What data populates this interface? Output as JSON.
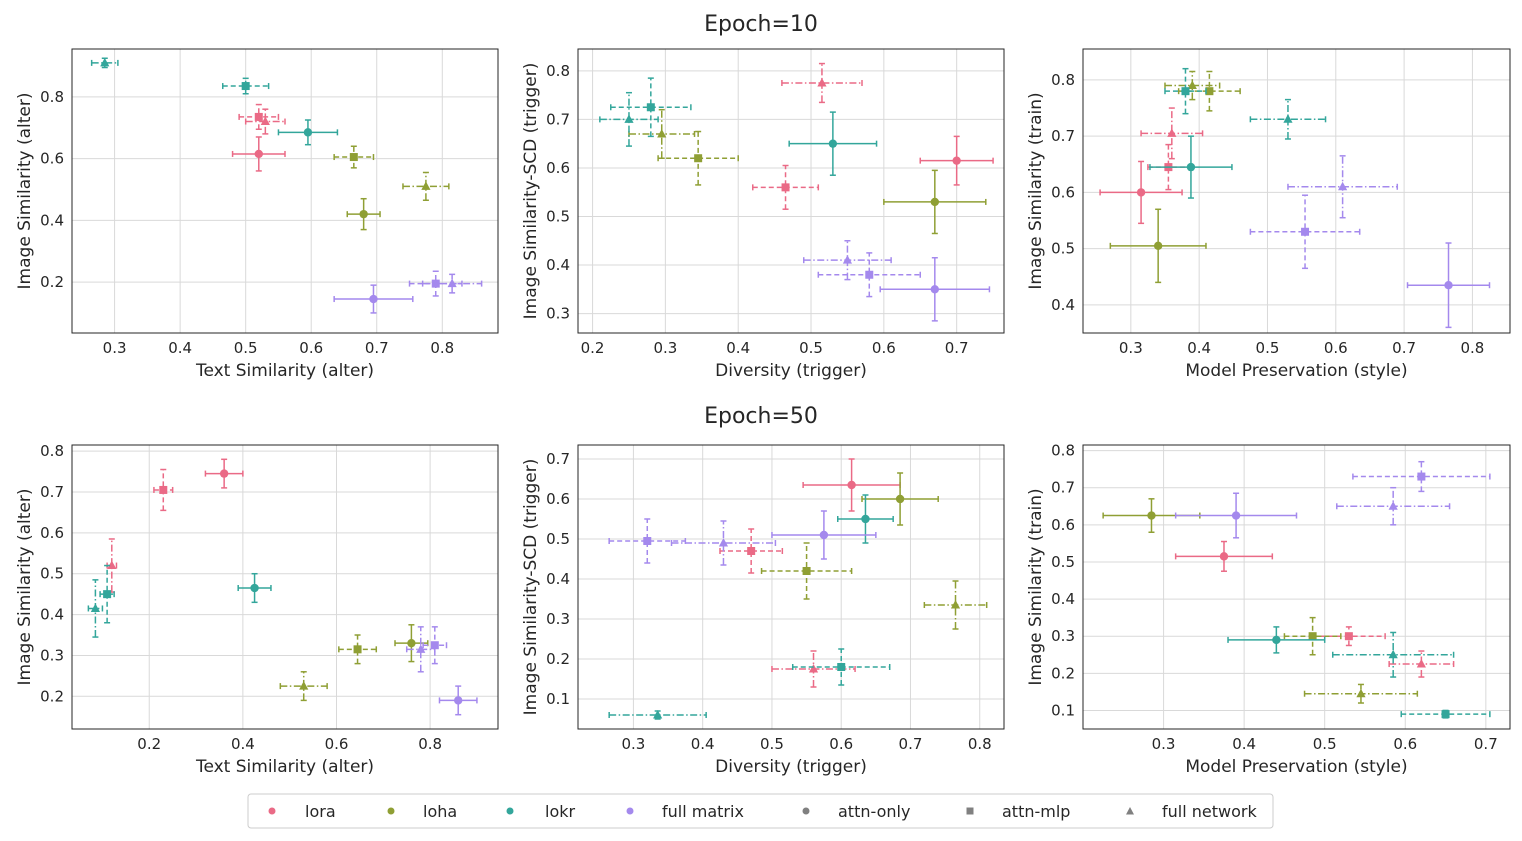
{
  "figure": {
    "row_titles": [
      "Epoch=10",
      "Epoch=50"
    ],
    "legend": {
      "algorithms": [
        {
          "key": "lora",
          "label": "lora",
          "color": "#ea6a86"
        },
        {
          "key": "loha",
          "label": "loha",
          "color": "#8f9f34"
        },
        {
          "key": "lokr",
          "label": "lokr",
          "color": "#33a69b"
        },
        {
          "key": "full",
          "label": "full matrix",
          "color": "#a489ed"
        }
      ],
      "presets": [
        {
          "key": "attn-only",
          "label": "attn-only",
          "marker": "circle",
          "line": "solid"
        },
        {
          "key": "attn-mlp",
          "label": "attn-mlp",
          "marker": "square",
          "line": "dashed"
        },
        {
          "key": "full-network",
          "label": "full network",
          "marker": "triangle",
          "line": "dashdot"
        }
      ],
      "marker_color": "#808080"
    }
  },
  "chart_data": [
    {
      "type": "scatter",
      "row": 0,
      "col": 0,
      "xlabel": "Text Similarity (alter)",
      "ylabel": "Image Similarity (alter)",
      "xlim": [
        0.235,
        0.885
      ],
      "ylim": [
        0.035,
        0.955
      ],
      "xticks": [
        0.3,
        0.4,
        0.5,
        0.6,
        0.7,
        0.8
      ],
      "yticks": [
        0.2,
        0.4,
        0.6,
        0.8
      ],
      "tick_format": 1,
      "points": [
        {
          "algo": "lora",
          "preset": "attn-only",
          "x": 0.52,
          "y": 0.615,
          "xerr": 0.04,
          "yerr": 0.055
        },
        {
          "algo": "lora",
          "preset": "attn-mlp",
          "x": 0.52,
          "y": 0.735,
          "xerr": 0.03,
          "yerr": 0.04
        },
        {
          "algo": "lora",
          "preset": "full-network",
          "x": 0.53,
          "y": 0.72,
          "xerr": 0.03,
          "yerr": 0.04
        },
        {
          "algo": "loha",
          "preset": "attn-only",
          "x": 0.68,
          "y": 0.42,
          "xerr": 0.025,
          "yerr": 0.05
        },
        {
          "algo": "loha",
          "preset": "attn-mlp",
          "x": 0.665,
          "y": 0.605,
          "xerr": 0.03,
          "yerr": 0.035
        },
        {
          "algo": "loha",
          "preset": "full-network",
          "x": 0.775,
          "y": 0.51,
          "xerr": 0.035,
          "yerr": 0.045
        },
        {
          "algo": "lokr",
          "preset": "attn-only",
          "x": 0.595,
          "y": 0.685,
          "xerr": 0.045,
          "yerr": 0.04
        },
        {
          "algo": "lokr",
          "preset": "attn-mlp",
          "x": 0.5,
          "y": 0.835,
          "xerr": 0.035,
          "yerr": 0.025
        },
        {
          "algo": "lokr",
          "preset": "full-network",
          "x": 0.285,
          "y": 0.91,
          "xerr": 0.02,
          "yerr": 0.015
        },
        {
          "algo": "full",
          "preset": "attn-only",
          "x": 0.695,
          "y": 0.145,
          "xerr": 0.06,
          "yerr": 0.045
        },
        {
          "algo": "full",
          "preset": "attn-mlp",
          "x": 0.79,
          "y": 0.195,
          "xerr": 0.04,
          "yerr": 0.04
        },
        {
          "algo": "full",
          "preset": "full-network",
          "x": 0.815,
          "y": 0.195,
          "xerr": 0.045,
          "yerr": 0.03
        }
      ]
    },
    {
      "type": "scatter",
      "row": 0,
      "col": 1,
      "xlabel": "Diversity (trigger)",
      "ylabel": "Image Similarity-SCD (trigger)",
      "xlim": [
        0.18,
        0.765
      ],
      "ylim": [
        0.26,
        0.845
      ],
      "xticks": [
        0.2,
        0.3,
        0.4,
        0.5,
        0.6,
        0.7
      ],
      "yticks": [
        0.3,
        0.4,
        0.5,
        0.6,
        0.7,
        0.8
      ],
      "tick_format": 1,
      "points": [
        {
          "algo": "lora",
          "preset": "attn-only",
          "x": 0.7,
          "y": 0.615,
          "xerr": 0.05,
          "yerr": 0.05
        },
        {
          "algo": "lora",
          "preset": "attn-mlp",
          "x": 0.465,
          "y": 0.56,
          "xerr": 0.045,
          "yerr": 0.045
        },
        {
          "algo": "lora",
          "preset": "full-network",
          "x": 0.515,
          "y": 0.775,
          "xerr": 0.055,
          "yerr": 0.04
        },
        {
          "algo": "loha",
          "preset": "attn-only",
          "x": 0.67,
          "y": 0.53,
          "xerr": 0.07,
          "yerr": 0.065
        },
        {
          "algo": "loha",
          "preset": "attn-mlp",
          "x": 0.345,
          "y": 0.62,
          "xerr": 0.055,
          "yerr": 0.055
        },
        {
          "algo": "loha",
          "preset": "full-network",
          "x": 0.295,
          "y": 0.67,
          "xerr": 0.045,
          "yerr": 0.05
        },
        {
          "algo": "lokr",
          "preset": "attn-only",
          "x": 0.53,
          "y": 0.65,
          "xerr": 0.06,
          "yerr": 0.065
        },
        {
          "algo": "lokr",
          "preset": "attn-mlp",
          "x": 0.28,
          "y": 0.725,
          "xerr": 0.055,
          "yerr": 0.06
        },
        {
          "algo": "lokr",
          "preset": "full-network",
          "x": 0.25,
          "y": 0.7,
          "xerr": 0.04,
          "yerr": 0.055
        },
        {
          "algo": "full",
          "preset": "attn-only",
          "x": 0.67,
          "y": 0.35,
          "xerr": 0.075,
          "yerr": 0.065
        },
        {
          "algo": "full",
          "preset": "attn-mlp",
          "x": 0.58,
          "y": 0.38,
          "xerr": 0.07,
          "yerr": 0.045
        },
        {
          "algo": "full",
          "preset": "full-network",
          "x": 0.55,
          "y": 0.41,
          "xerr": 0.06,
          "yerr": 0.04
        }
      ]
    },
    {
      "type": "scatter",
      "row": 0,
      "col": 2,
      "xlabel": "Model Preservation (style)",
      "ylabel": "Image Similarity (train)",
      "xlim": [
        0.23,
        0.855
      ],
      "ylim": [
        0.35,
        0.855
      ],
      "xticks": [
        0.3,
        0.4,
        0.5,
        0.6,
        0.7,
        0.8
      ],
      "yticks": [
        0.4,
        0.5,
        0.6,
        0.7,
        0.8
      ],
      "tick_format": 1,
      "points": [
        {
          "algo": "lora",
          "preset": "attn-only",
          "x": 0.315,
          "y": 0.6,
          "xerr": 0.06,
          "yerr": 0.055
        },
        {
          "algo": "lora",
          "preset": "attn-mlp",
          "x": 0.355,
          "y": 0.645,
          "xerr": 0.03,
          "yerr": 0.04
        },
        {
          "algo": "lora",
          "preset": "full-network",
          "x": 0.36,
          "y": 0.705,
          "xerr": 0.045,
          "yerr": 0.045
        },
        {
          "algo": "loha",
          "preset": "attn-only",
          "x": 0.34,
          "y": 0.505,
          "xerr": 0.07,
          "yerr": 0.065
        },
        {
          "algo": "loha",
          "preset": "attn-mlp",
          "x": 0.415,
          "y": 0.78,
          "xerr": 0.045,
          "yerr": 0.035
        },
        {
          "algo": "loha",
          "preset": "full-network",
          "x": 0.39,
          "y": 0.79,
          "xerr": 0.04,
          "yerr": 0.025
        },
        {
          "algo": "lokr",
          "preset": "attn-only",
          "x": 0.388,
          "y": 0.645,
          "xerr": 0.06,
          "yerr": 0.055
        },
        {
          "algo": "lokr",
          "preset": "attn-mlp",
          "x": 0.38,
          "y": 0.78,
          "xerr": 0.03,
          "yerr": 0.04
        },
        {
          "algo": "lokr",
          "preset": "full-network",
          "x": 0.53,
          "y": 0.73,
          "xerr": 0.055,
          "yerr": 0.035
        },
        {
          "algo": "full",
          "preset": "attn-only",
          "x": 0.765,
          "y": 0.435,
          "xerr": 0.06,
          "yerr": 0.075
        },
        {
          "algo": "full",
          "preset": "attn-mlp",
          "x": 0.555,
          "y": 0.53,
          "xerr": 0.08,
          "yerr": 0.065
        },
        {
          "algo": "full",
          "preset": "full-network",
          "x": 0.61,
          "y": 0.61,
          "xerr": 0.08,
          "yerr": 0.055
        }
      ]
    },
    {
      "type": "scatter",
      "row": 1,
      "col": 0,
      "xlabel": "Text Similarity (alter)",
      "ylabel": "Image Similarity (alter)",
      "xlim": [
        0.035,
        0.945
      ],
      "ylim": [
        0.12,
        0.815
      ],
      "xticks": [
        0.2,
        0.4,
        0.6,
        0.8
      ],
      "yticks": [
        0.2,
        0.3,
        0.4,
        0.5,
        0.6,
        0.7,
        0.8
      ],
      "tick_format": 1,
      "points": [
        {
          "algo": "lora",
          "preset": "attn-only",
          "x": 0.36,
          "y": 0.745,
          "xerr": 0.04,
          "yerr": 0.035
        },
        {
          "algo": "lora",
          "preset": "attn-mlp",
          "x": 0.23,
          "y": 0.705,
          "xerr": 0.02,
          "yerr": 0.05
        },
        {
          "algo": "lora",
          "preset": "full-network",
          "x": 0.12,
          "y": 0.52,
          "xerr": 0.01,
          "yerr": 0.065
        },
        {
          "algo": "loha",
          "preset": "attn-only",
          "x": 0.76,
          "y": 0.33,
          "xerr": 0.035,
          "yerr": 0.045
        },
        {
          "algo": "loha",
          "preset": "attn-mlp",
          "x": 0.645,
          "y": 0.315,
          "xerr": 0.04,
          "yerr": 0.035
        },
        {
          "algo": "loha",
          "preset": "full-network",
          "x": 0.53,
          "y": 0.225,
          "xerr": 0.05,
          "yerr": 0.035
        },
        {
          "algo": "lokr",
          "preset": "attn-only",
          "x": 0.425,
          "y": 0.465,
          "xerr": 0.035,
          "yerr": 0.035
        },
        {
          "algo": "lokr",
          "preset": "attn-mlp",
          "x": 0.11,
          "y": 0.45,
          "xerr": 0.015,
          "yerr": 0.07
        },
        {
          "algo": "lokr",
          "preset": "full-network",
          "x": 0.085,
          "y": 0.415,
          "xerr": 0.015,
          "yerr": 0.07
        },
        {
          "algo": "full",
          "preset": "attn-only",
          "x": 0.86,
          "y": 0.19,
          "xerr": 0.04,
          "yerr": 0.035
        },
        {
          "algo": "full",
          "preset": "attn-mlp",
          "x": 0.81,
          "y": 0.325,
          "xerr": 0.025,
          "yerr": 0.045
        },
        {
          "algo": "full",
          "preset": "full-network",
          "x": 0.78,
          "y": 0.315,
          "xerr": 0.03,
          "yerr": 0.055
        }
      ]
    },
    {
      "type": "scatter",
      "row": 1,
      "col": 1,
      "xlabel": "Diversity (trigger)",
      "ylabel": "Image Similarity-SCD (trigger)",
      "xlim": [
        0.22,
        0.835
      ],
      "ylim": [
        0.025,
        0.735
      ],
      "xticks": [
        0.3,
        0.4,
        0.5,
        0.6,
        0.7,
        0.8
      ],
      "yticks": [
        0.1,
        0.2,
        0.3,
        0.4,
        0.5,
        0.6,
        0.7
      ],
      "tick_format": 1,
      "points": [
        {
          "algo": "lora",
          "preset": "attn-only",
          "x": 0.615,
          "y": 0.635,
          "xerr": 0.07,
          "yerr": 0.065
        },
        {
          "algo": "lora",
          "preset": "attn-mlp",
          "x": 0.47,
          "y": 0.47,
          "xerr": 0.045,
          "yerr": 0.055
        },
        {
          "algo": "lora",
          "preset": "full-network",
          "x": 0.56,
          "y": 0.175,
          "xerr": 0.06,
          "yerr": 0.045
        },
        {
          "algo": "loha",
          "preset": "attn-only",
          "x": 0.685,
          "y": 0.6,
          "xerr": 0.055,
          "yerr": 0.065
        },
        {
          "algo": "loha",
          "preset": "attn-mlp",
          "x": 0.55,
          "y": 0.42,
          "xerr": 0.065,
          "yerr": 0.07
        },
        {
          "algo": "loha",
          "preset": "full-network",
          "x": 0.765,
          "y": 0.335,
          "xerr": 0.045,
          "yerr": 0.06
        },
        {
          "algo": "lokr",
          "preset": "attn-only",
          "x": 0.635,
          "y": 0.55,
          "xerr": 0.04,
          "yerr": 0.06
        },
        {
          "algo": "lokr",
          "preset": "attn-mlp",
          "x": 0.6,
          "y": 0.18,
          "xerr": 0.07,
          "yerr": 0.045
        },
        {
          "algo": "lokr",
          "preset": "full-network",
          "x": 0.335,
          "y": 0.06,
          "xerr": 0.07,
          "yerr": 0.01
        },
        {
          "algo": "full",
          "preset": "attn-only",
          "x": 0.575,
          "y": 0.51,
          "xerr": 0.075,
          "yerr": 0.06
        },
        {
          "algo": "full",
          "preset": "attn-mlp",
          "x": 0.32,
          "y": 0.495,
          "xerr": 0.055,
          "yerr": 0.055
        },
        {
          "algo": "full",
          "preset": "full-network",
          "x": 0.43,
          "y": 0.49,
          "xerr": 0.075,
          "yerr": 0.055
        }
      ]
    },
    {
      "type": "scatter",
      "row": 1,
      "col": 2,
      "xlabel": "Model Preservation (style)",
      "ylabel": "Image Similarity (train)",
      "xlim": [
        0.2,
        0.73
      ],
      "ylim": [
        0.05,
        0.815
      ],
      "xticks": [
        0.3,
        0.4,
        0.5,
        0.6,
        0.7
      ],
      "yticks": [
        0.1,
        0.2,
        0.3,
        0.4,
        0.5,
        0.6,
        0.7,
        0.8
      ],
      "tick_format": 1,
      "points": [
        {
          "algo": "lora",
          "preset": "attn-only",
          "x": 0.375,
          "y": 0.515,
          "xerr": 0.06,
          "yerr": 0.04
        },
        {
          "algo": "lora",
          "preset": "attn-mlp",
          "x": 0.53,
          "y": 0.3,
          "xerr": 0.045,
          "yerr": 0.025
        },
        {
          "algo": "lora",
          "preset": "full-network",
          "x": 0.62,
          "y": 0.225,
          "xerr": 0.04,
          "yerr": 0.035
        },
        {
          "algo": "loha",
          "preset": "attn-only",
          "x": 0.285,
          "y": 0.625,
          "xerr": 0.06,
          "yerr": 0.045
        },
        {
          "algo": "loha",
          "preset": "attn-mlp",
          "x": 0.485,
          "y": 0.3,
          "xerr": 0.035,
          "yerr": 0.05
        },
        {
          "algo": "loha",
          "preset": "full-network",
          "x": 0.545,
          "y": 0.145,
          "xerr": 0.07,
          "yerr": 0.025
        },
        {
          "algo": "lokr",
          "preset": "attn-only",
          "x": 0.44,
          "y": 0.29,
          "xerr": 0.06,
          "yerr": 0.035
        },
        {
          "algo": "lokr",
          "preset": "attn-mlp",
          "x": 0.65,
          "y": 0.09,
          "xerr": 0.055,
          "yerr": 0.01
        },
        {
          "algo": "lokr",
          "preset": "full-network",
          "x": 0.585,
          "y": 0.25,
          "xerr": 0.075,
          "yerr": 0.06
        },
        {
          "algo": "full",
          "preset": "attn-only",
          "x": 0.39,
          "y": 0.625,
          "xerr": 0.075,
          "yerr": 0.06
        },
        {
          "algo": "full",
          "preset": "attn-mlp",
          "x": 0.62,
          "y": 0.73,
          "xerr": 0.085,
          "yerr": 0.04
        },
        {
          "algo": "full",
          "preset": "full-network",
          "x": 0.585,
          "y": 0.65,
          "xerr": 0.07,
          "yerr": 0.05
        }
      ]
    }
  ]
}
